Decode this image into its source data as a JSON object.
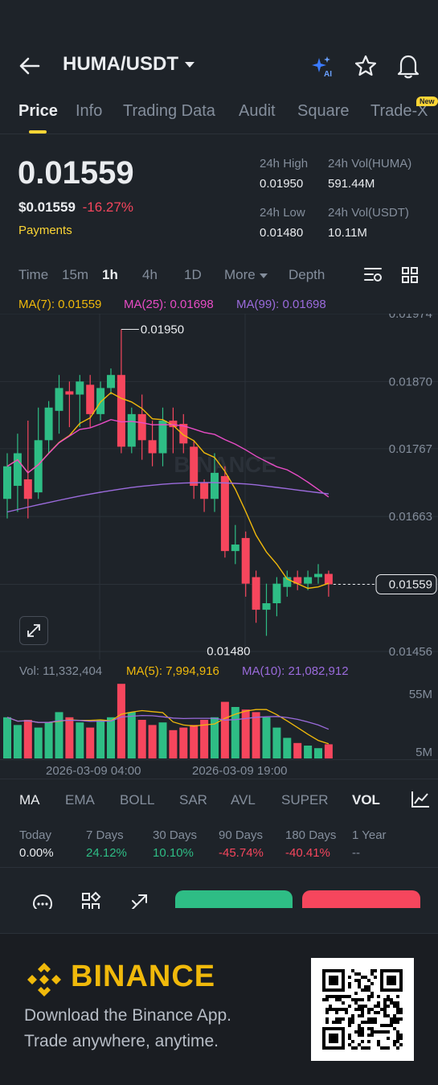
{
  "header": {
    "back_icon": "arrow-left-icon",
    "pair": "HUMA/USDT",
    "ai_icon": "sparkle-ai-icon",
    "ai_label": "AI",
    "star_icon": "star-icon",
    "bell_icon": "bell-icon"
  },
  "tabs": [
    {
      "label": "Price",
      "active": true
    },
    {
      "label": "Info"
    },
    {
      "label": "Trading Data"
    },
    {
      "label": "Audit"
    },
    {
      "label": "Square"
    },
    {
      "label": "Trade-X"
    }
  ],
  "new_badge": "New",
  "ticker": {
    "last_price": "0.01559",
    "usd_price": "$0.01559",
    "change_pct": "-16.27%",
    "tag": "Payments",
    "high_label": "24h High",
    "high": "0.01950",
    "vol_huma_label": "24h Vol(HUMA)",
    "vol_huma": "591.44M",
    "low_label": "24h Low",
    "low": "0.01480",
    "vol_usdt_label": "24h Vol(USDT)",
    "vol_usdt": "10.11M"
  },
  "timeframes": {
    "time": "Time",
    "m15": "15m",
    "h1": "1h",
    "h4": "4h",
    "d1": "1D",
    "more": "More",
    "depth": "Depth",
    "active": "1h"
  },
  "ma_legend": {
    "ma7": "MA(7): 0.01559",
    "ma25": "MA(25): 0.01698",
    "ma99": "MA(99): 0.01698"
  },
  "chart_axis": {
    "y_labels": [
      "0.01974",
      "0.01870",
      "0.01767",
      "0.01663",
      "0.01559",
      "0.01456"
    ],
    "high_marker": "0.01950",
    "low_marker": "0.01480",
    "current_price": "0.01559",
    "x_labels": [
      "2026-03-09 04:00",
      "2026-03-09 19:00"
    ],
    "watermark": "BINANCE"
  },
  "vol_legend": {
    "vol": "Vol: 11,332,404",
    "ma5": "MA(5): 7,994,916",
    "ma10": "MA(10): 21,082,912",
    "y_top": "55M",
    "y_bottom": "5M"
  },
  "chart_data": {
    "type": "candlestick",
    "ylim": [
      0.01456,
      0.01974
    ],
    "candles": [
      {
        "o": 0.0169,
        "c": 0.0174,
        "h": 0.0176,
        "l": 0.0166
      },
      {
        "o": 0.0171,
        "c": 0.0176,
        "h": 0.0179,
        "l": 0.0167
      },
      {
        "o": 0.0172,
        "c": 0.0169,
        "h": 0.0181,
        "l": 0.0166
      },
      {
        "o": 0.017,
        "c": 0.0178,
        "h": 0.0183,
        "l": 0.0169
      },
      {
        "o": 0.0178,
        "c": 0.0183,
        "h": 0.0184,
        "l": 0.0176
      },
      {
        "o": 0.01825,
        "c": 0.0186,
        "h": 0.0188,
        "l": 0.0179
      },
      {
        "o": 0.01855,
        "c": 0.0185,
        "h": 0.0187,
        "l": 0.018
      },
      {
        "o": 0.0185,
        "c": 0.0187,
        "h": 0.0188,
        "l": 0.018
      },
      {
        "o": 0.01865,
        "c": 0.0182,
        "h": 0.0188,
        "l": 0.018
      },
      {
        "o": 0.0182,
        "c": 0.0186,
        "h": 0.0187,
        "l": 0.0181
      },
      {
        "o": 0.0186,
        "c": 0.0188,
        "h": 0.0189,
        "l": 0.0185
      },
      {
        "o": 0.0188,
        "c": 0.0177,
        "h": 0.0195,
        "l": 0.0176
      },
      {
        "o": 0.0177,
        "c": 0.0182,
        "h": 0.0183,
        "l": 0.0176
      },
      {
        "o": 0.0182,
        "c": 0.0178,
        "h": 0.0185,
        "l": 0.0175
      },
      {
        "o": 0.0178,
        "c": 0.0176,
        "h": 0.0181,
        "l": 0.0174
      },
      {
        "o": 0.0176,
        "c": 0.0181,
        "h": 0.0183,
        "l": 0.0174
      },
      {
        "o": 0.0181,
        "c": 0.018,
        "h": 0.0183,
        "l": 0.0176
      },
      {
        "o": 0.01805,
        "c": 0.01775,
        "h": 0.0182,
        "l": 0.0176
      },
      {
        "o": 0.0177,
        "c": 0.0171,
        "h": 0.0178,
        "l": 0.0169
      },
      {
        "o": 0.01715,
        "c": 0.0169,
        "h": 0.0172,
        "l": 0.0167
      },
      {
        "o": 0.0169,
        "c": 0.0173,
        "h": 0.0176,
        "l": 0.0167
      },
      {
        "o": 0.01725,
        "c": 0.0161,
        "h": 0.0174,
        "l": 0.016
      },
      {
        "o": 0.0161,
        "c": 0.0162,
        "h": 0.0165,
        "l": 0.0159
      },
      {
        "o": 0.0163,
        "c": 0.0156,
        "h": 0.0164,
        "l": 0.0154
      },
      {
        "o": 0.0157,
        "c": 0.0152,
        "h": 0.0158,
        "l": 0.015
      },
      {
        "o": 0.0152,
        "c": 0.0153,
        "h": 0.0156,
        "l": 0.0148
      },
      {
        "o": 0.0153,
        "c": 0.0156,
        "h": 0.0157,
        "l": 0.0151
      },
      {
        "o": 0.01555,
        "c": 0.0157,
        "h": 0.0158,
        "l": 0.0154
      },
      {
        "o": 0.0157,
        "c": 0.0156,
        "h": 0.0158,
        "l": 0.0155
      },
      {
        "o": 0.0156,
        "c": 0.0157,
        "h": 0.0158,
        "l": 0.0155
      },
      {
        "o": 0.0157,
        "c": 0.01575,
        "h": 0.0159,
        "l": 0.0156
      },
      {
        "o": 0.01575,
        "c": 0.01559,
        "h": 0.0158,
        "l": 0.0154
      }
    ],
    "volume": [
      32,
      26,
      30,
      24,
      28,
      36,
      32,
      28,
      24,
      30,
      32,
      58,
      36,
      30,
      26,
      28,
      22,
      24,
      26,
      30,
      32,
      44,
      40,
      38,
      36,
      32,
      24,
      16,
      12,
      10,
      8,
      11
    ]
  },
  "indicators": [
    "MA",
    "EMA",
    "BOLL",
    "SAR",
    "AVL",
    "SUPER",
    "VOL"
  ],
  "indicator_active": "VOL",
  "performance": [
    {
      "label": "Today",
      "value": "0.00%",
      "tone": "neutral"
    },
    {
      "label": "7 Days",
      "value": "24.12%",
      "tone": "up"
    },
    {
      "label": "30 Days",
      "value": "10.10%",
      "tone": "up"
    },
    {
      "label": "90 Days",
      "value": "-45.74%",
      "tone": "down"
    },
    {
      "label": "180 Days",
      "value": "-40.41%",
      "tone": "down"
    },
    {
      "label": "1 Year",
      "value": "--",
      "tone": "neutral"
    }
  ],
  "action_bar": {
    "chat_icon": "chat-bubble-icon",
    "grid_icon": "apps-grid-icon",
    "share_icon": "share-icon"
  },
  "footer": {
    "brand": "BINANCE",
    "line1": "Download the Binance App.",
    "line2": "Trade anywhere, anytime."
  },
  "colors": {
    "up": "#2ebd85",
    "down": "#f6465d",
    "accent": "#fcd535",
    "ma7": "#f0b90b",
    "ma25": "#e84cc6",
    "ma99": "#9b6bdc"
  }
}
